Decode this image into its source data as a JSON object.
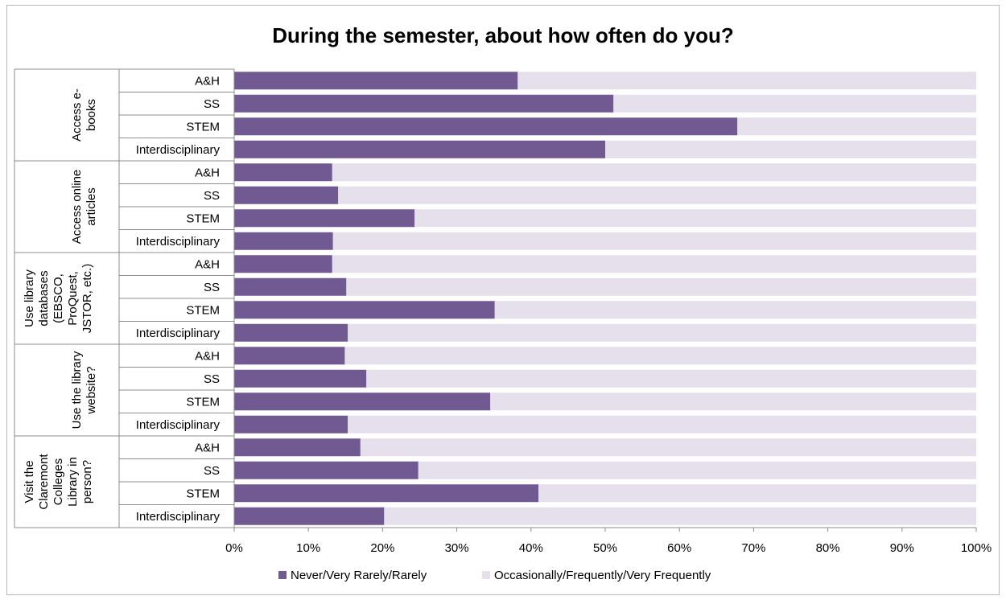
{
  "chart_data": {
    "type": "bar",
    "orientation": "horizontal",
    "stacked": true,
    "percent_stacked": true,
    "title": "During the semester, about how often do you?",
    "groups": [
      {
        "label_lines": [
          "Access e-",
          "books"
        ],
        "categories": [
          "A&H",
          "SS",
          "STEM",
          "Interdisciplinary"
        ],
        "values": [
          38.2,
          51.1,
          67.8,
          50.0
        ]
      },
      {
        "label_lines": [
          "Access online",
          "articles"
        ],
        "categories": [
          "A&H",
          "SS",
          "STEM",
          "Interdisciplinary"
        ],
        "values": [
          13.2,
          14.0,
          24.3,
          13.3
        ]
      },
      {
        "label_lines": [
          "Use library",
          "databases",
          "(EBSCO,",
          "ProQuest,",
          "JSTOR, etc.)"
        ],
        "categories": [
          "A&H",
          "SS",
          "STEM",
          "Interdisciplinary"
        ],
        "values": [
          13.2,
          15.1,
          35.1,
          15.3
        ]
      },
      {
        "label_lines": [
          "Use the library",
          "website?"
        ],
        "categories": [
          "A&H",
          "SS",
          "STEM",
          "Interdisciplinary"
        ],
        "values": [
          14.9,
          17.8,
          34.5,
          15.3
        ]
      },
      {
        "label_lines": [
          "Visit the",
          "Claremont",
          "Colleges",
          "Library in",
          "person?"
        ],
        "categories": [
          "A&H",
          "SS",
          "STEM",
          "Interdisciplinary"
        ],
        "values": [
          17.0,
          24.8,
          41.0,
          20.2
        ]
      }
    ],
    "series": [
      {
        "name": "Never/Very Rarely/Rarely",
        "color": "#715a91"
      },
      {
        "name": "Occasionally/Frequently/Very Frequently",
        "color": "#e6e0ec"
      }
    ],
    "xlim": [
      0,
      100
    ],
    "xticks": [
      "0%",
      "10%",
      "20%",
      "30%",
      "40%",
      "50%",
      "60%",
      "70%",
      "80%",
      "90%",
      "100%"
    ],
    "legend_position": "bottom",
    "grid": false
  }
}
